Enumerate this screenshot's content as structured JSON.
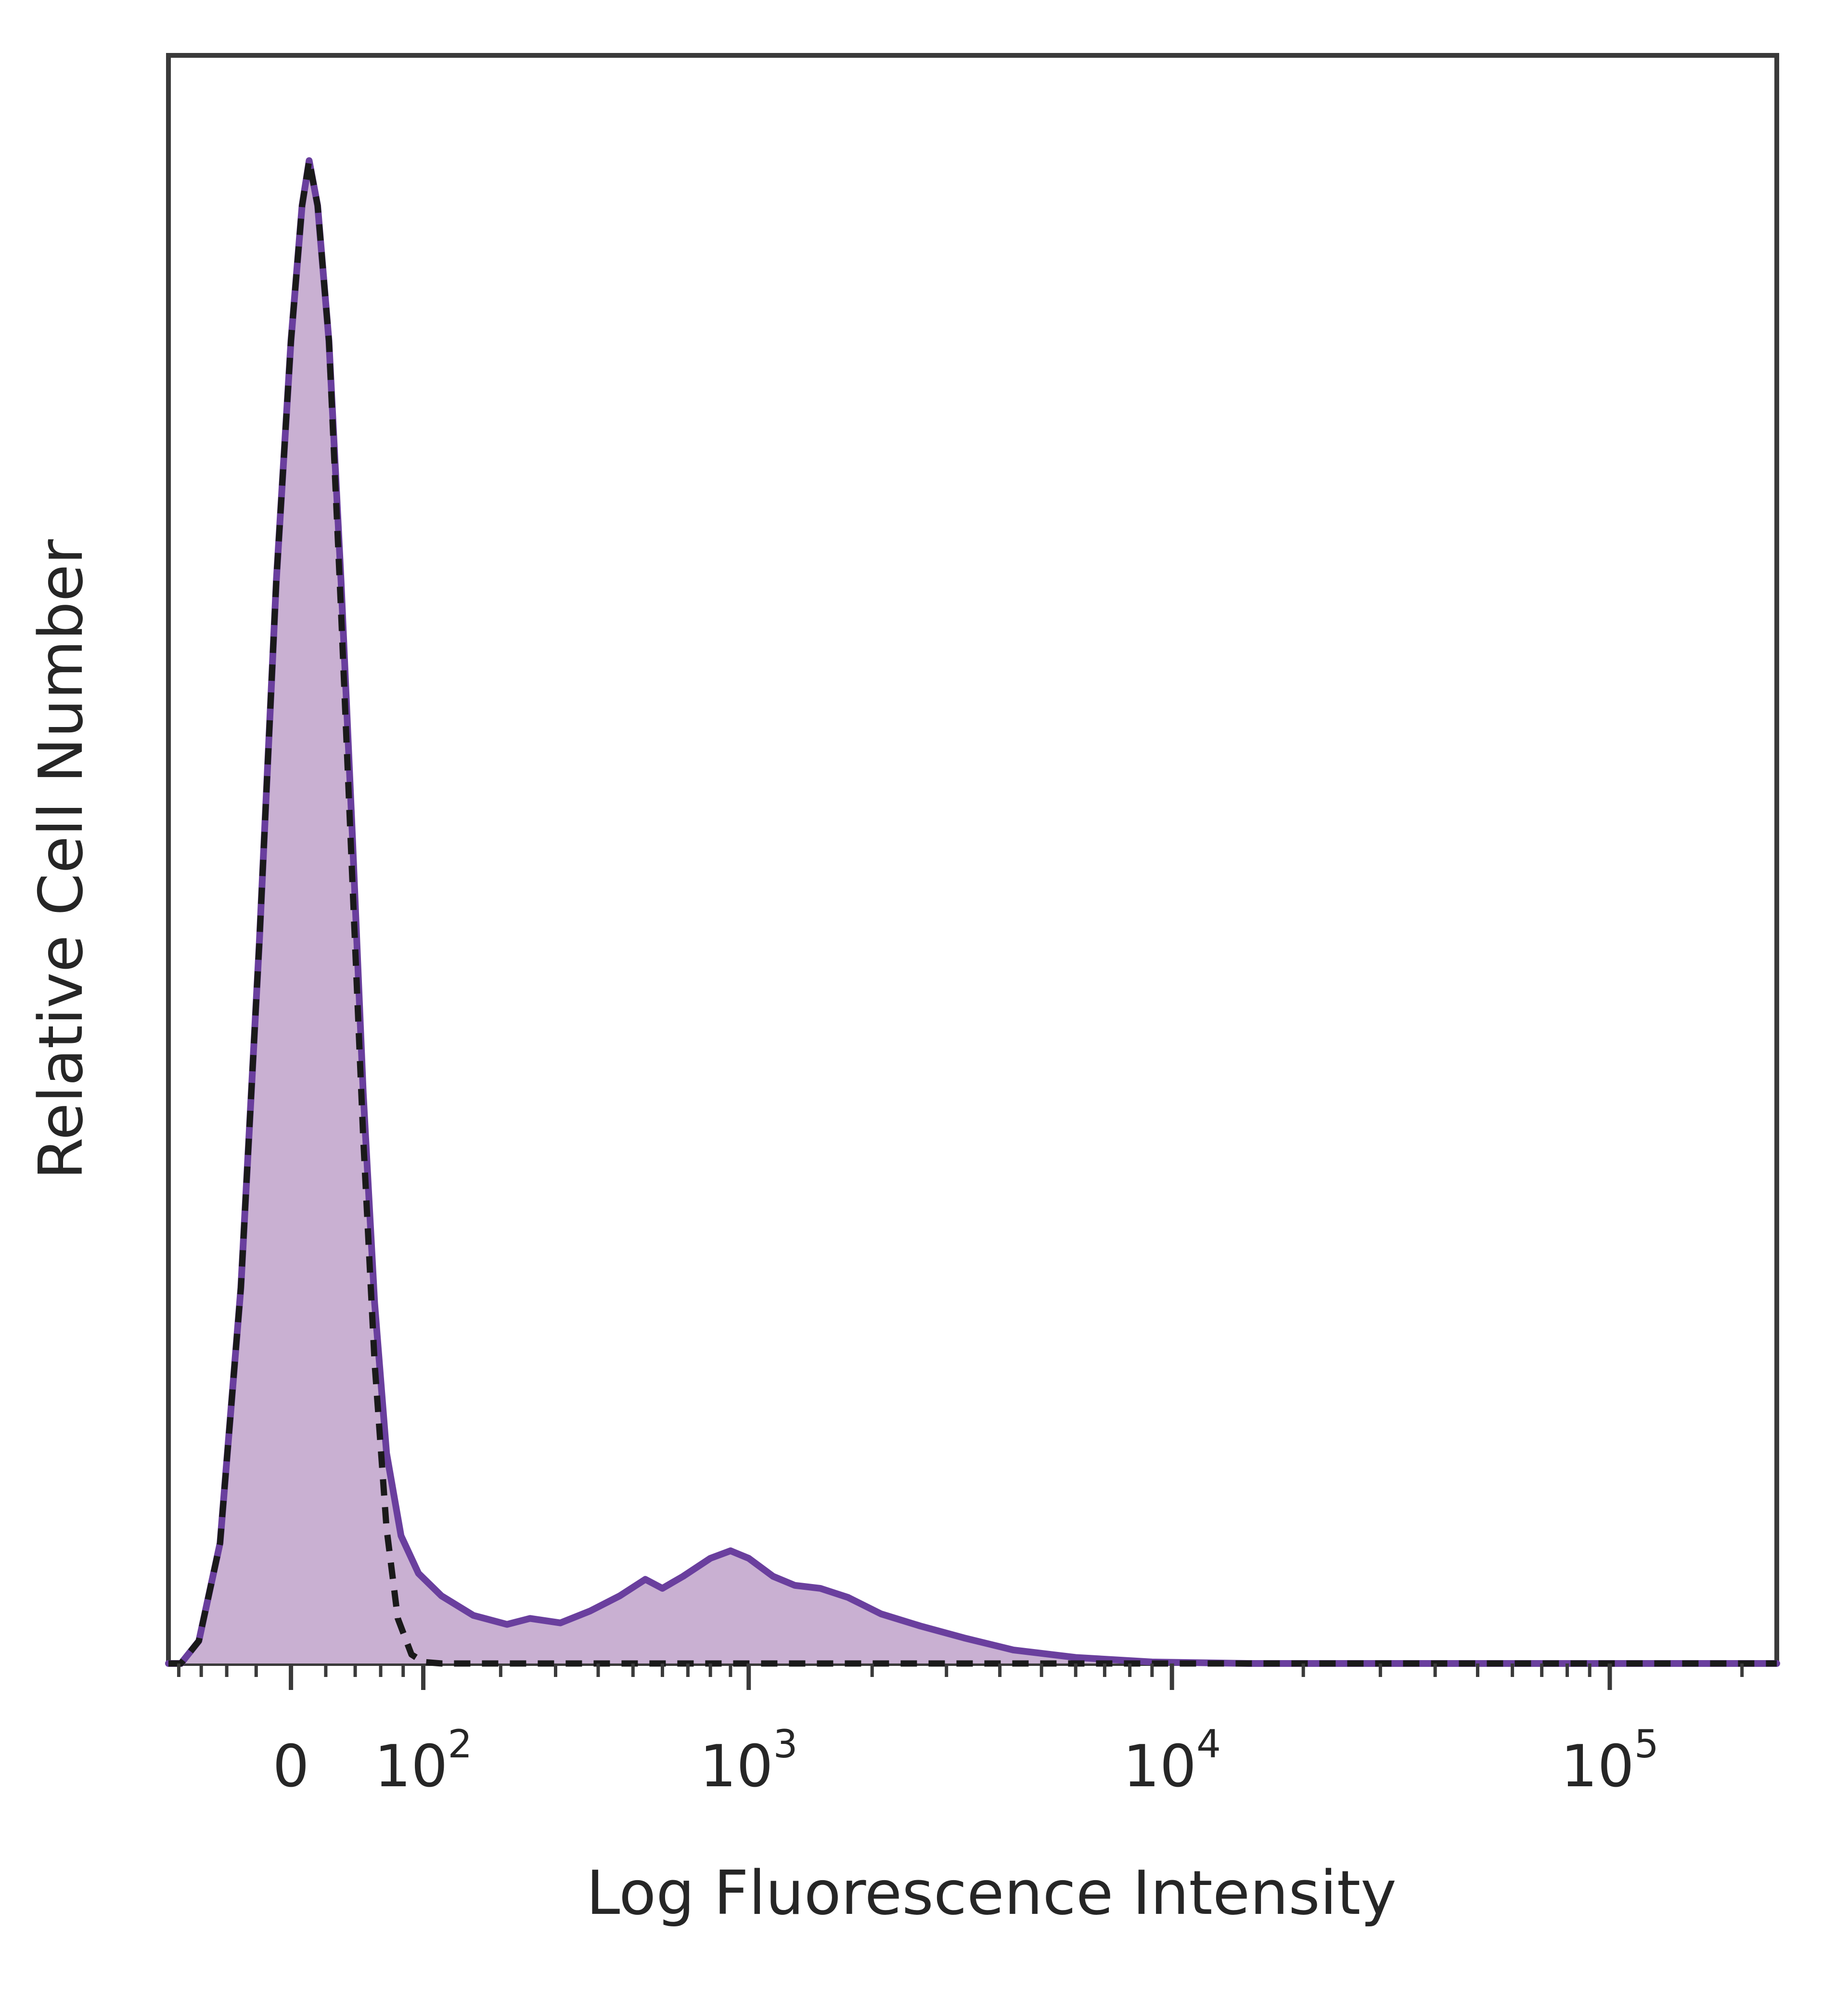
{
  "chart_data": {
    "type": "area",
    "xlabel": "Log Fluorescence Intensity",
    "ylabel": "Relative Cell Number",
    "x_scale": "biexponential",
    "xlim": [
      -90,
      240000
    ],
    "ylim": [
      0,
      1.07
    ],
    "grid": false,
    "x_ticks": [
      {
        "value": 0,
        "base": "0",
        "exp": ""
      },
      {
        "value": 100,
        "base": "10",
        "exp": "2"
      },
      {
        "value": 1000,
        "base": "10",
        "exp": "3"
      },
      {
        "value": 10000,
        "base": "10",
        "exp": "4"
      },
      {
        "value": 100000,
        "base": "10",
        "exp": "5"
      }
    ],
    "series": [
      {
        "style": "filled",
        "color": "#6a3f9e",
        "fill": "#c9b0d2",
        "points": [
          [
            -90,
            0.0
          ],
          [
            -78,
            0.0
          ],
          [
            -62,
            0.015
          ],
          [
            -45,
            0.08
          ],
          [
            -30,
            0.25
          ],
          [
            -18,
            0.48
          ],
          [
            -8,
            0.72
          ],
          [
            0,
            0.88
          ],
          [
            6,
            0.97
          ],
          [
            10,
            1.0
          ],
          [
            15,
            0.97
          ],
          [
            22,
            0.88
          ],
          [
            30,
            0.72
          ],
          [
            38,
            0.55
          ],
          [
            46,
            0.38
          ],
          [
            55,
            0.24
          ],
          [
            65,
            0.14
          ],
          [
            78,
            0.085
          ],
          [
            95,
            0.06
          ],
          [
            120,
            0.045
          ],
          [
            160,
            0.032
          ],
          [
            210,
            0.026
          ],
          [
            250,
            0.03
          ],
          [
            310,
            0.027
          ],
          [
            380,
            0.035
          ],
          [
            460,
            0.045
          ],
          [
            540,
            0.056
          ],
          [
            600,
            0.05
          ],
          [
            680,
            0.058
          ],
          [
            800,
            0.07
          ],
          [
            900,
            0.075
          ],
          [
            1000,
            0.07
          ],
          [
            1150,
            0.058
          ],
          [
            1300,
            0.052
          ],
          [
            1500,
            0.05
          ],
          [
            1750,
            0.044
          ],
          [
            2100,
            0.033
          ],
          [
            2600,
            0.025
          ],
          [
            3300,
            0.017
          ],
          [
            4300,
            0.009
          ],
          [
            6000,
            0.004
          ],
          [
            9000,
            0.001
          ],
          [
            15000,
            0.0
          ],
          [
            240000,
            0.0
          ]
        ]
      },
      {
        "style": "dashed",
        "color": "#1a1a1a",
        "points": [
          [
            -90,
            0.0
          ],
          [
            -78,
            0.0
          ],
          [
            -62,
            0.015
          ],
          [
            -45,
            0.08
          ],
          [
            -30,
            0.25
          ],
          [
            -18,
            0.48
          ],
          [
            -8,
            0.72
          ],
          [
            0,
            0.88
          ],
          [
            6,
            0.97
          ],
          [
            10,
            1.0
          ],
          [
            15,
            0.97
          ],
          [
            22,
            0.88
          ],
          [
            30,
            0.7
          ],
          [
            38,
            0.52
          ],
          [
            46,
            0.35
          ],
          [
            55,
            0.2
          ],
          [
            65,
            0.09
          ],
          [
            75,
            0.03
          ],
          [
            88,
            0.006
          ],
          [
            100,
            0.001
          ],
          [
            120,
            0.0
          ],
          [
            240000,
            0.0
          ]
        ]
      }
    ]
  }
}
